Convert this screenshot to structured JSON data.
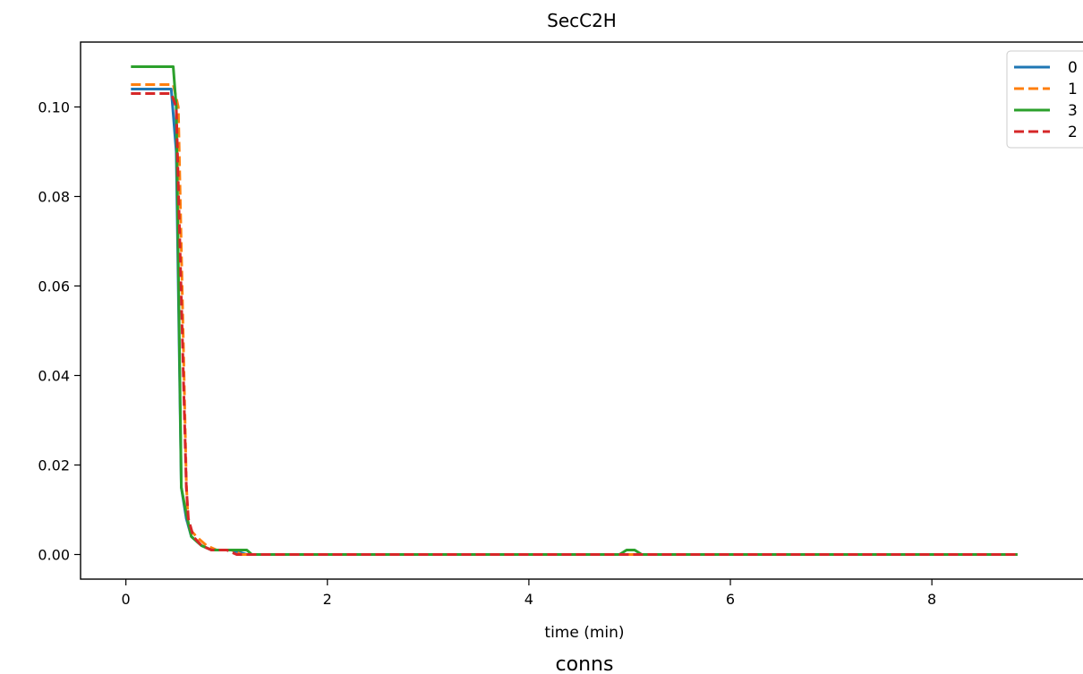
{
  "chart_data": {
    "type": "line",
    "title": "SecC2H",
    "xlabel": "time (min)",
    "ylabel": "",
    "caption": "conns",
    "xlim": [
      -0.45,
      9.5
    ],
    "ylim": [
      -0.0055,
      0.1145
    ],
    "x_ticks": [
      0,
      2,
      4,
      6,
      8
    ],
    "y_ticks": [
      0.0,
      0.02,
      0.04,
      0.06,
      0.08,
      0.1
    ],
    "x_tick_labels": [
      "0",
      "2",
      "4",
      "6",
      "8"
    ],
    "y_tick_labels": [
      "0.00",
      "0.02",
      "0.04",
      "0.06",
      "0.08",
      "0.10"
    ],
    "grid": false,
    "legend_position": "top-right",
    "series": [
      {
        "name": "0",
        "color": "#1f77b4",
        "dash": "solid",
        "points": [
          [
            0.05,
            0.104
          ],
          [
            0.45,
            0.104
          ],
          [
            0.5,
            0.09
          ],
          [
            0.55,
            0.015
          ],
          [
            0.6,
            0.008
          ],
          [
            0.65,
            0.004
          ],
          [
            0.75,
            0.002
          ],
          [
            0.85,
            0.001
          ],
          [
            1.05,
            0.001
          ],
          [
            1.2,
            0.0
          ],
          [
            4.9,
            0.0
          ],
          [
            5.0,
            0.0
          ],
          [
            5.1,
            0.0
          ],
          [
            8.85,
            0.0
          ]
        ]
      },
      {
        "name": "1",
        "color": "#ff7f0e",
        "dash": "dashed",
        "points": [
          [
            0.05,
            0.105
          ],
          [
            0.47,
            0.105
          ],
          [
            0.52,
            0.1
          ],
          [
            0.6,
            0.016
          ],
          [
            0.62,
            0.006
          ],
          [
            0.7,
            0.004
          ],
          [
            0.8,
            0.002
          ],
          [
            0.9,
            0.001
          ],
          [
            1.05,
            0.001
          ],
          [
            1.15,
            0.0
          ],
          [
            4.9,
            0.0
          ],
          [
            5.0,
            0.0
          ],
          [
            5.1,
            0.0
          ],
          [
            8.85,
            0.0
          ]
        ]
      },
      {
        "name": "3",
        "color": "#2ca02c",
        "dash": "solid",
        "points": [
          [
            0.05,
            0.109
          ],
          [
            0.47,
            0.109
          ],
          [
            0.5,
            0.1
          ],
          [
            0.55,
            0.015
          ],
          [
            0.6,
            0.009
          ],
          [
            0.65,
            0.004
          ],
          [
            0.75,
            0.002
          ],
          [
            0.85,
            0.001
          ],
          [
            1.2,
            0.001
          ],
          [
            1.25,
            0.0
          ],
          [
            4.9,
            0.0
          ],
          [
            4.97,
            0.001
          ],
          [
            5.05,
            0.001
          ],
          [
            5.12,
            0.0
          ],
          [
            8.85,
            0.0
          ]
        ]
      },
      {
        "name": "2",
        "color": "#d62728",
        "dash": "dashed",
        "points": [
          [
            0.05,
            0.103
          ],
          [
            0.45,
            0.103
          ],
          [
            0.5,
            0.1
          ],
          [
            0.6,
            0.015
          ],
          [
            0.62,
            0.008
          ],
          [
            0.67,
            0.004
          ],
          [
            0.75,
            0.002
          ],
          [
            0.85,
            0.001
          ],
          [
            1.0,
            0.001
          ],
          [
            1.1,
            0.0
          ],
          [
            4.9,
            0.0
          ],
          [
            5.0,
            0.0
          ],
          [
            5.1,
            0.0
          ],
          [
            8.85,
            0.0
          ]
        ]
      }
    ]
  }
}
